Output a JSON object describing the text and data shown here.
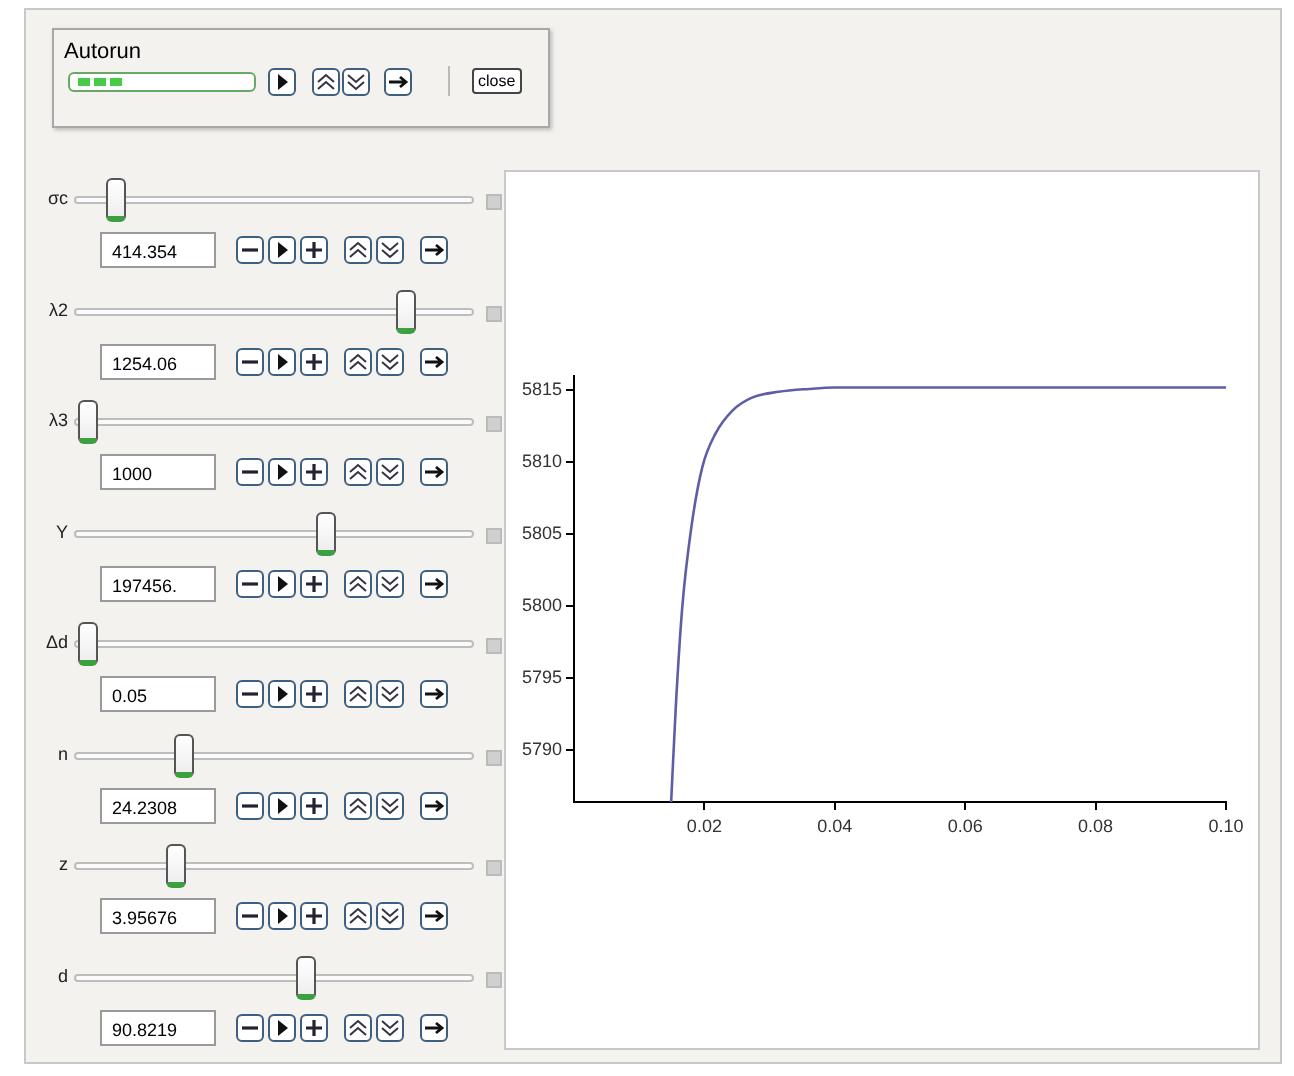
{
  "chart_data": {
    "type": "line",
    "x": [
      0.0149,
      0.0156,
      0.0166,
      0.018,
      0.0197,
      0.0217,
      0.0243,
      0.0273,
      0.0314,
      0.036,
      0.04,
      0.06,
      0.08,
      0.1
    ],
    "series": [
      {
        "color": "#5e5ea8",
        "values": [
          5786.4,
          5792.9,
          5799.9,
          5805.5,
          5809.7,
          5812.0,
          5813.6,
          5814.5,
          5814.9,
          5815.1,
          5815.2,
          5815.2,
          5815.2,
          5815.2
        ]
      }
    ],
    "xlim": [
      0,
      0.1
    ],
    "xticks": [
      0.02,
      0.04,
      0.06,
      0.08,
      {
        "value": 0.1,
        "label": "0.10"
      }
    ],
    "ylim": [
      5786.4,
      5816
    ],
    "yticks": [
      5790,
      5795,
      5800,
      5805,
      5810,
      5815
    ],
    "grid": false,
    "legend": false,
    "marker": "none",
    "line_style": "solid",
    "annotations": [
      "Autorun",
      "close",
      "σc",
      "414.354",
      "λ2",
      "1254.06",
      "λ3",
      "1000",
      "Y",
      "197456.",
      "Δd",
      "0.05",
      "n",
      "24.2308",
      "z",
      "3.95676",
      "d",
      "90.8219"
    ]
  }
}
